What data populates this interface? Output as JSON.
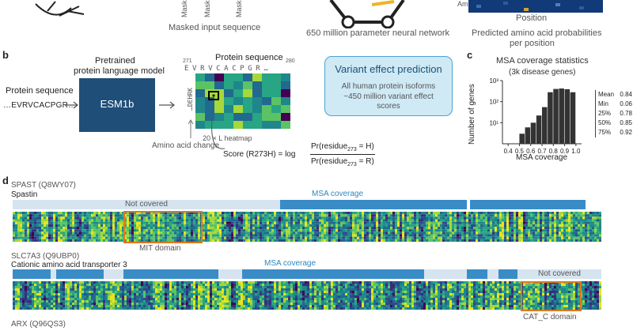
{
  "panel_a": {
    "masked_token_labels": [
      "Masked",
      "Masked",
      "Masked"
    ],
    "caption_masked": "Masked input sequence",
    "caption_network": "650 million parameter neural network",
    "axis_side": "Ami",
    "axis_position": "Position",
    "caption_predicted_1": "Predicted amino acid probabilities",
    "caption_predicted_2": "per position"
  },
  "panel_b": {
    "letter": "b",
    "protein_sequence_label": "Protein sequence",
    "protein_sequence_text": "…EVRVCACPGR…",
    "model_label_1": "Pretrained",
    "model_label_2": "protein language model",
    "model_name": "ESM1b",
    "heatmap_title": "Protein sequence",
    "pos_start": "271",
    "pos_end": "280",
    "residues": [
      "E",
      "V",
      "R",
      "V",
      "C",
      "A",
      "C",
      "P",
      "G",
      "R",
      "…"
    ],
    "amino_acids_column": "…DEHRK",
    "heatmap_caption": "20 × L heatmap",
    "amino_acid_change": "Amino acid change",
    "score_label": "Score (R273H) = log",
    "numerator": "Pr(residue",
    "numerator_sub": "273",
    "numerator_tail": " = H)",
    "denominator": "Pr(residue",
    "denominator_sub": "273",
    "denominator_tail": " = R)",
    "vep_title": "Variant effect prediction",
    "vep_line1": "All human protein isoforms",
    "vep_line2": "~450 million variant effect",
    "vep_line3": "scores"
  },
  "panel_c": {
    "letter": "c",
    "title": "MSA coverage statistics",
    "subtitle": "(3k disease genes)",
    "stats": [
      {
        "k": "Mean",
        "v": "0.84"
      },
      {
        "k": "Min",
        "v": "0.06"
      },
      {
        "k": "25%",
        "v": "0.78"
      },
      {
        "k": "50%",
        "v": "0.85"
      },
      {
        "k": "75%",
        "v": "0.92"
      }
    ]
  },
  "chart_data": {
    "type": "bar",
    "title": "MSA coverage statistics",
    "subtitle": "(3k disease genes)",
    "xlabel": "MSA coverage",
    "ylabel": "Number of genes",
    "yscale": "log",
    "ylim": [
      1,
      1000
    ],
    "yticks": [
      "10¹",
      "10²",
      "10³"
    ],
    "xticks": [
      "0.4",
      "0.5",
      "0.6",
      "0.7",
      "0.8",
      "0.9",
      "1.0"
    ],
    "bins": [
      0.5,
      0.55,
      0.6,
      0.65,
      0.7,
      0.75,
      0.8,
      0.85,
      0.9,
      0.95
    ],
    "values": [
      3,
      6,
      10,
      22,
      55,
      280,
      400,
      420,
      390,
      280
    ]
  },
  "panel_d": {
    "letter": "d",
    "proteins": [
      {
        "id": "SPAST (Q8WY07)",
        "name": "Spastin",
        "not_covered": "Not covered",
        "msa": "MSA coverage",
        "domain": "MIT domain"
      },
      {
        "id": "SLC7A3 (Q9UBP0)",
        "name": "Cationic amino acid transporter 3",
        "not_covered": "Not covered",
        "msa": "MSA coverage",
        "domain": "CAT_C domain"
      },
      {
        "id": "ARX (Q96QS3)"
      }
    ]
  },
  "colors": {
    "esm_box": "#1f4e79",
    "vep_box_bg": "#cfe9f5",
    "vep_box_border": "#4aa3cf",
    "msa_bar": "#3a8cc7",
    "not_covered_bar": "#d6e4f0",
    "domain_box": "#e0771f"
  }
}
